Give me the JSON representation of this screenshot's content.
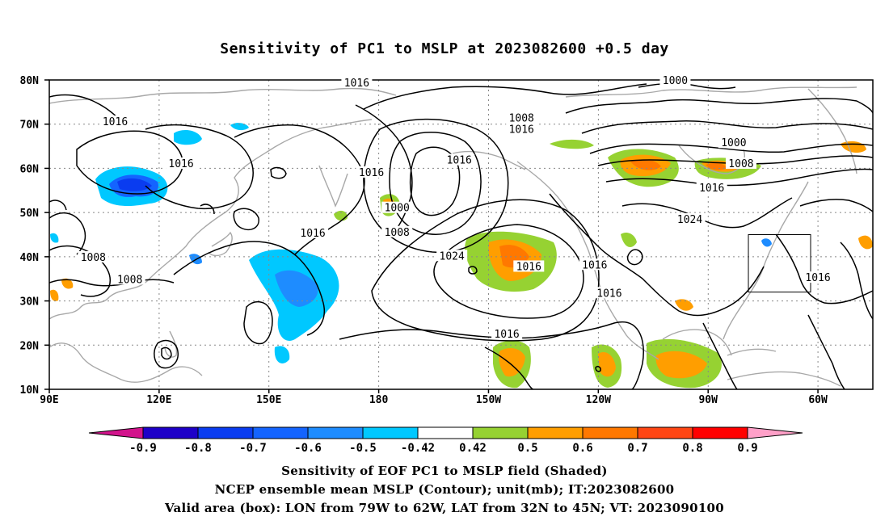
{
  "title": "Sensitivity of PC1 to MSLP at 2023082600 +0.5 day",
  "map": {
    "lat_ticks": [
      "80N",
      "70N",
      "60N",
      "50N",
      "40N",
      "30N",
      "20N",
      "10N"
    ],
    "lon_ticks": [
      "90E",
      "120E",
      "150E",
      "180",
      "150W",
      "120W",
      "90W",
      "60W"
    ],
    "lon_range": [
      90,
      315
    ],
    "lat_range": [
      10,
      80
    ],
    "valid_box": {
      "lon_range": [
        281,
        298
      ],
      "lat_range": [
        32,
        45
      ]
    },
    "contour_labels": [
      {
        "text": "1016",
        "lon": 174,
        "lat": 79.3
      },
      {
        "text": "1000",
        "lon": 261,
        "lat": 79.8
      },
      {
        "text": "1016",
        "lon": 108,
        "lat": 70.5
      },
      {
        "text": "1008",
        "lon": 219,
        "lat": 71.3
      },
      {
        "text": "1016",
        "lon": 219,
        "lat": 68.8
      },
      {
        "text": "1000",
        "lon": 277,
        "lat": 65.7
      },
      {
        "text": "1016",
        "lon": 126,
        "lat": 61
      },
      {
        "text": "1008",
        "lon": 279,
        "lat": 61
      },
      {
        "text": "1016",
        "lon": 178,
        "lat": 59
      },
      {
        "text": "1016",
        "lon": 202,
        "lat": 61.8
      },
      {
        "text": "1016",
        "lon": 271,
        "lat": 55.5
      },
      {
        "text": "1000",
        "lon": 185,
        "lat": 51
      },
      {
        "text": "1024",
        "lon": 265,
        "lat": 48.4
      },
      {
        "text": "1008",
        "lon": 185,
        "lat": 45.5
      },
      {
        "text": "1016",
        "lon": 162,
        "lat": 45.3
      },
      {
        "text": "1008",
        "lon": 102,
        "lat": 39.8
      },
      {
        "text": "1024",
        "lon": 200,
        "lat": 40.1
      },
      {
        "text": "1016",
        "lon": 221,
        "lat": 37.7
      },
      {
        "text": "1016",
        "lon": 239,
        "lat": 38.1
      },
      {
        "text": "1008",
        "lon": 112,
        "lat": 34.8
      },
      {
        "text": "1016",
        "lon": 300,
        "lat": 35.2
      },
      {
        "text": "1016",
        "lon": 243,
        "lat": 31.7
      },
      {
        "text": "1016",
        "lon": 215,
        "lat": 22.4
      }
    ]
  },
  "colorbar": {
    "labels": [
      "-0.9",
      "-0.8",
      "-0.7",
      "-0.6",
      "-0.5",
      "-0.42",
      "0.42",
      "0.5",
      "0.6",
      "0.7",
      "0.8",
      "0.9"
    ],
    "colors": [
      "#1e00c8",
      "#0a3cf0",
      "#1464ff",
      "#1e8cff",
      "#00c8ff",
      "#ffffff",
      "#96d232",
      "#ff9e00",
      "#ff7800",
      "#ff4614",
      "#ff0000"
    ],
    "left_tip": "#d2148c",
    "right_tip": "#ffa0c8"
  },
  "caption": {
    "line1": "Sensitivity of EOF PC1 to MSLP field (Shaded)",
    "line2": "NCEP ensemble mean MSLP (Contour); unit(mb); IT:2023082600",
    "line3": "Valid area (box): LON from 79W to 62W, LAT from 32N to 45N; VT: 2023090100"
  }
}
